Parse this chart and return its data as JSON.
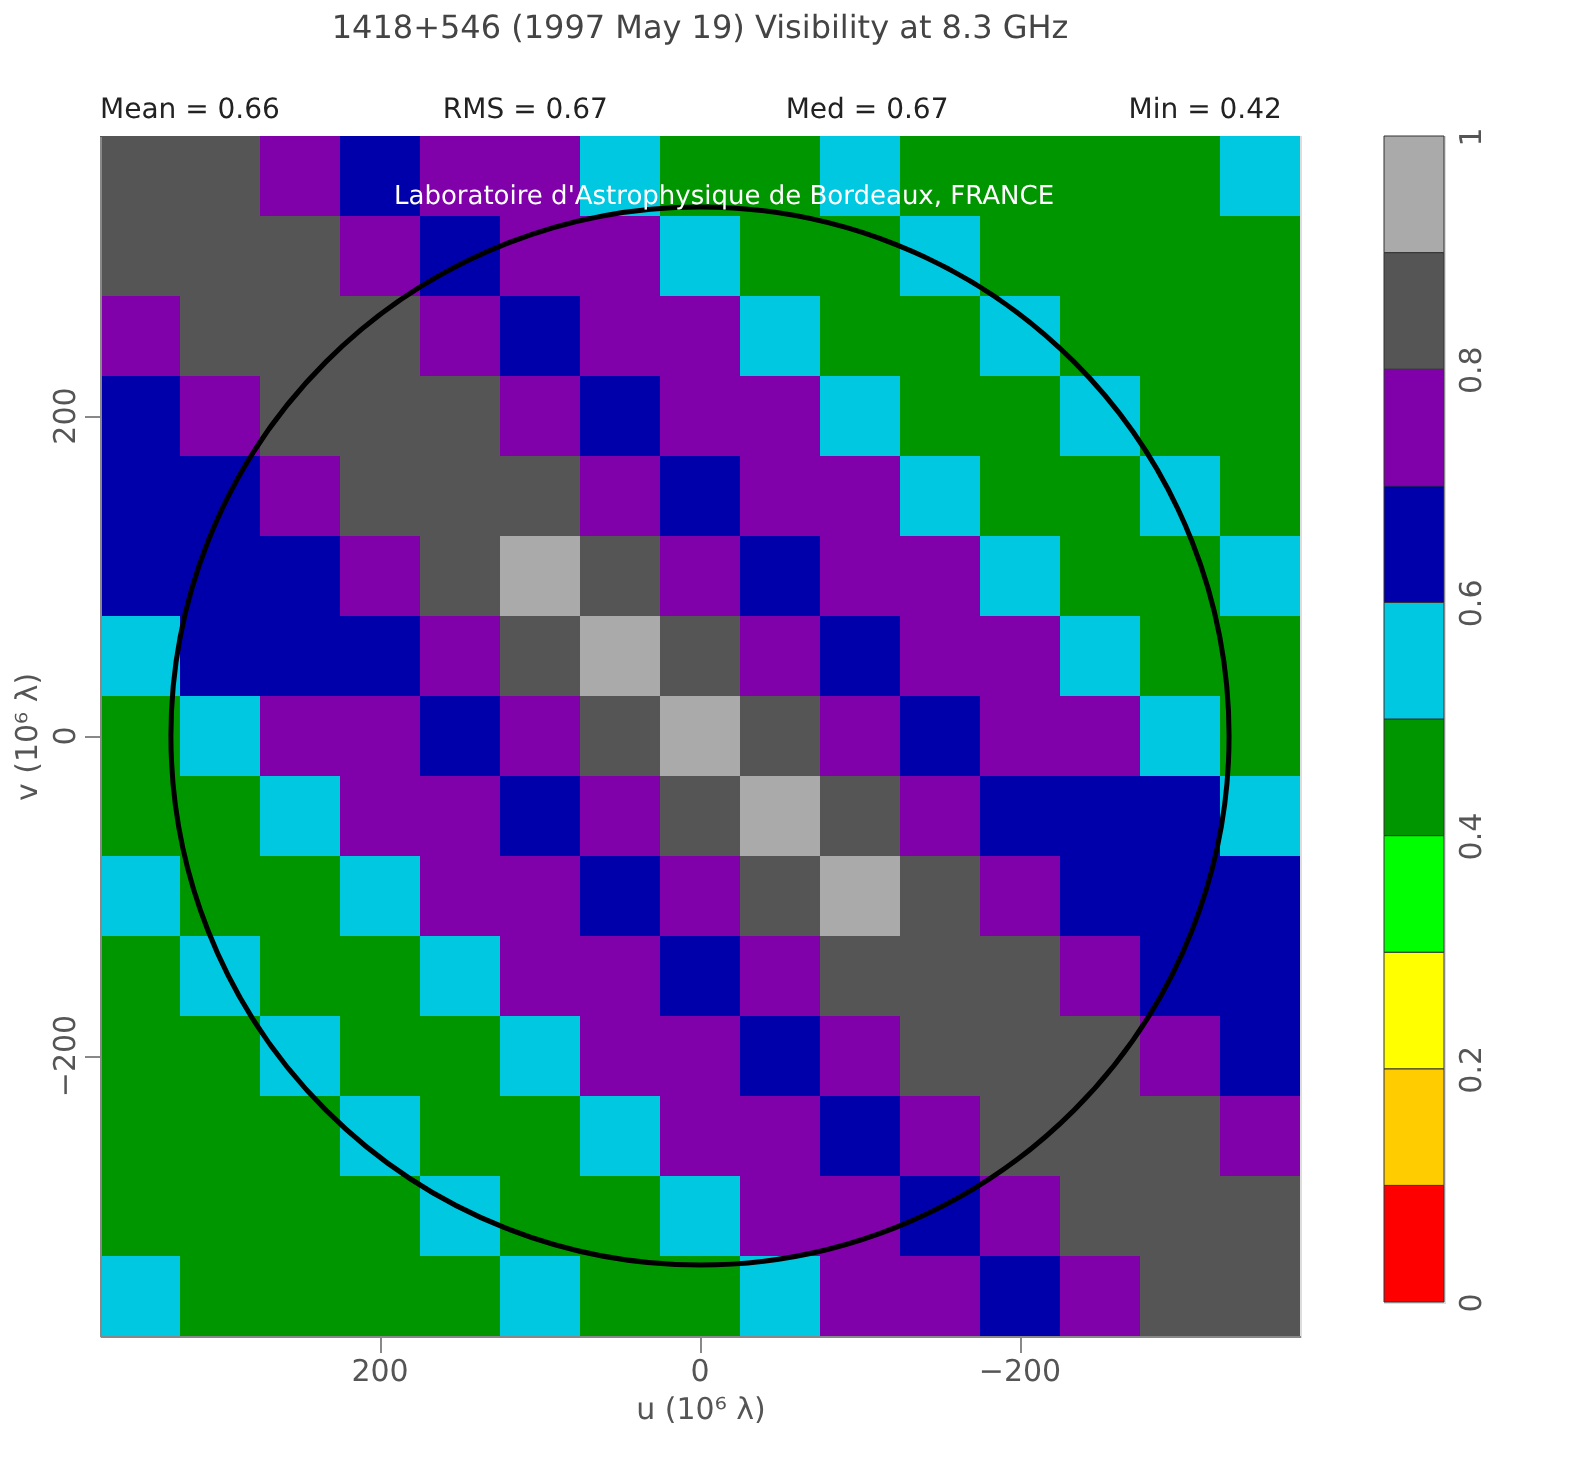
{
  "chart_data": {
    "type": "heatmap",
    "title": "1418+546  (1997 May 19)   Visibility at  8.3 GHz",
    "annotations": [
      "Mean =  0.66",
      "RMS =  0.67",
      "Med =  0.67",
      "Min =  0.42",
      "Laboratoire d'Astrophysique de Bordeaux, FRANCE"
    ],
    "xlabel": "u  (10⁶ λ)",
    "ylabel": "v  (10⁶ λ)",
    "categories": [
      null,
      null,
      null,
      "200",
      null,
      null,
      null,
      "0",
      null,
      null,
      null,
      "−200",
      null,
      null,
      null
    ],
    "y_categories": [
      null,
      null,
      null,
      "200",
      null,
      null,
      null,
      "0",
      null,
      null,
      null,
      "−200",
      null,
      null,
      null
    ],
    "cells": [
      [
        0.85,
        0.85,
        0.75,
        0.65,
        0.75,
        0.75,
        0.55,
        0.45,
        0.45,
        0.55,
        0.45,
        0.45,
        0.45,
        0.45,
        0.55
      ],
      [
        0.85,
        0.85,
        0.85,
        0.75,
        0.65,
        0.75,
        0.75,
        0.55,
        0.45,
        0.45,
        0.55,
        0.45,
        0.45,
        0.45,
        0.45
      ],
      [
        0.75,
        0.85,
        0.85,
        0.85,
        0.75,
        0.65,
        0.75,
        0.75,
        0.55,
        0.45,
        0.45,
        0.55,
        0.45,
        0.45,
        0.45
      ],
      [
        0.65,
        0.75,
        0.85,
        0.85,
        0.85,
        0.75,
        0.65,
        0.75,
        0.75,
        0.55,
        0.45,
        0.45,
        0.55,
        0.45,
        0.45
      ],
      [
        0.65,
        0.65,
        0.75,
        0.85,
        0.85,
        0.85,
        0.75,
        0.65,
        0.75,
        0.75,
        0.55,
        0.45,
        0.45,
        0.55,
        0.45
      ],
      [
        0.65,
        0.65,
        0.65,
        0.75,
        0.85,
        0.95,
        0.85,
        0.75,
        0.65,
        0.75,
        0.75,
        0.55,
        0.45,
        0.45,
        0.55
      ],
      [
        0.55,
        0.65,
        0.65,
        0.65,
        0.75,
        0.85,
        0.95,
        0.85,
        0.75,
        0.65,
        0.75,
        0.75,
        0.55,
        0.45,
        0.45
      ],
      [
        0.45,
        0.55,
        0.75,
        0.75,
        0.65,
        0.75,
        0.85,
        0.95,
        0.85,
        0.75,
        0.65,
        0.75,
        0.75,
        0.55,
        0.45
      ],
      [
        0.45,
        0.45,
        0.55,
        0.75,
        0.75,
        0.65,
        0.75,
        0.85,
        0.95,
        0.85,
        0.75,
        0.65,
        0.65,
        0.65,
        0.55
      ],
      [
        0.55,
        0.45,
        0.45,
        0.55,
        0.75,
        0.75,
        0.65,
        0.75,
        0.85,
        0.95,
        0.85,
        0.75,
        0.65,
        0.65,
        0.65
      ],
      [
        0.45,
        0.55,
        0.45,
        0.45,
        0.55,
        0.75,
        0.75,
        0.65,
        0.75,
        0.85,
        0.85,
        0.85,
        0.75,
        0.65,
        0.65
      ],
      [
        0.45,
        0.45,
        0.55,
        0.45,
        0.45,
        0.55,
        0.75,
        0.75,
        0.65,
        0.75,
        0.85,
        0.85,
        0.85,
        0.75,
        0.65
      ],
      [
        0.45,
        0.45,
        0.45,
        0.55,
        0.45,
        0.45,
        0.55,
        0.75,
        0.75,
        0.65,
        0.75,
        0.85,
        0.85,
        0.85,
        0.75
      ],
      [
        0.45,
        0.45,
        0.45,
        0.45,
        0.55,
        0.45,
        0.45,
        0.55,
        0.75,
        0.75,
        0.65,
        0.75,
        0.85,
        0.85,
        0.85
      ],
      [
        0.55,
        0.45,
        0.45,
        0.45,
        0.45,
        0.55,
        0.45,
        0.45,
        0.55,
        0.75,
        0.75,
        0.65,
        0.75,
        0.85,
        0.85
      ]
    ],
    "colors": [
      "#ff0000",
      "#ffcc00",
      "#ffff00",
      "#00ff00",
      "#009600",
      "#00c8e0",
      "#0000aa",
      "#8000aa",
      "#555555",
      "#aaaaaa"
    ],
    "clim": [
      0,
      1
    ],
    "cticks": [
      0,
      0.2,
      0.4,
      0.6,
      0.8,
      1
    ]
  }
}
